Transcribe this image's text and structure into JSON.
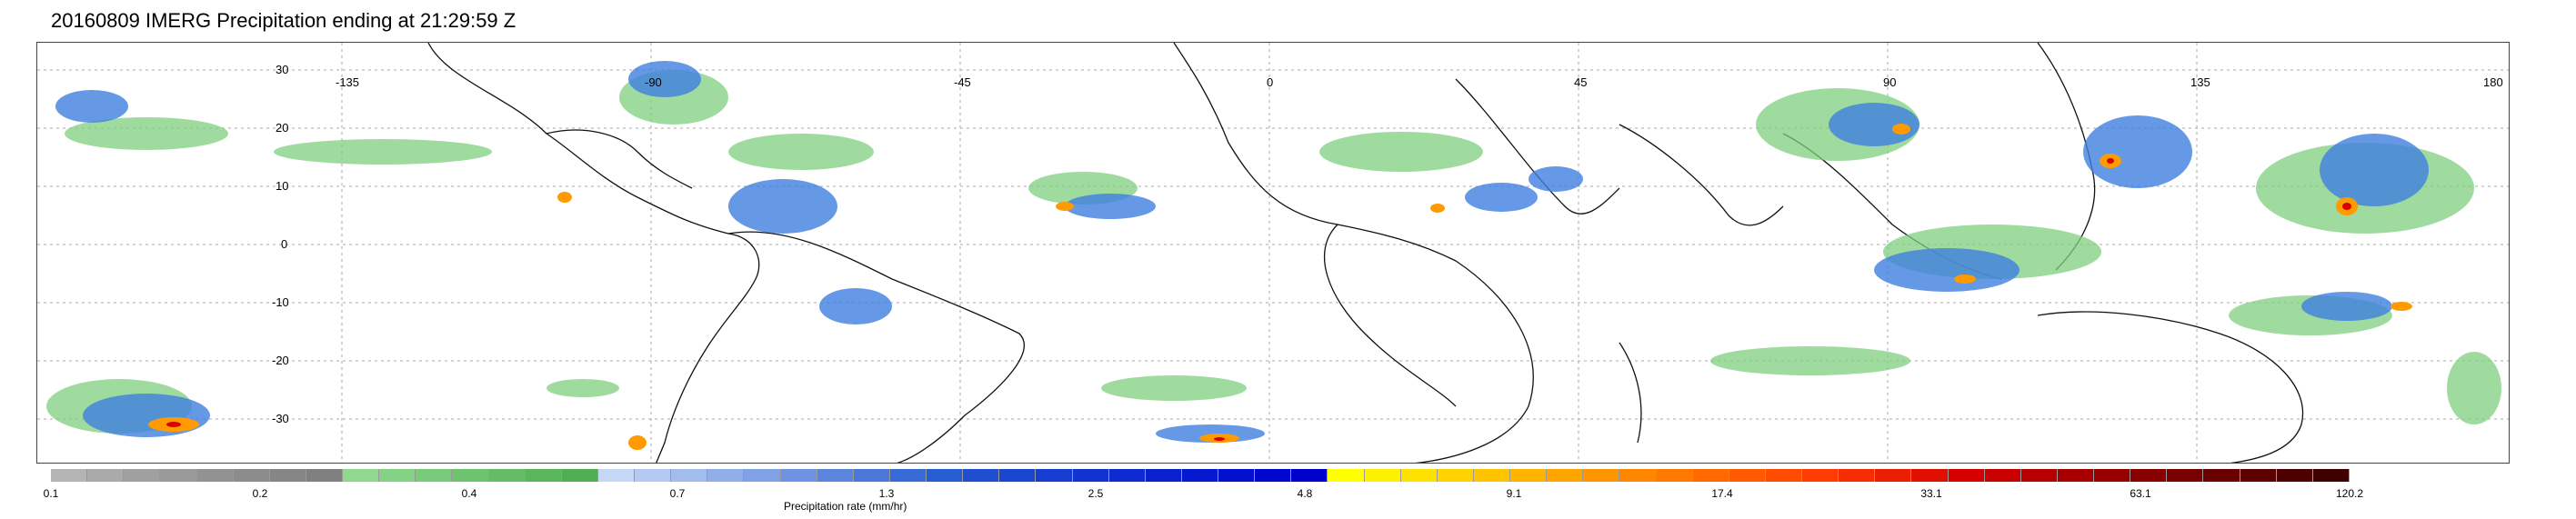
{
  "title": "20160809 IMERG Precipitation ending at 21:29:59 Z",
  "map": {
    "lat_labels": [
      "30",
      "20",
      "10",
      "0",
      "-10",
      "-20",
      "-30"
    ],
    "lon_labels": [
      "-135",
      "-90",
      "-45",
      "0",
      "45",
      "90",
      "135",
      "180"
    ]
  },
  "colorbar": {
    "label": "Precipitation rate (mm/hr)",
    "ticks": [
      "0.1",
      "0.2",
      "0.4",
      "0.7",
      "1.3",
      "2.5",
      "4.8",
      "9.1",
      "17.4",
      "33.1",
      "63.1",
      "120.2"
    ],
    "colors": [
      "#b4b4b4",
      "#aaaaaa",
      "#a0a0a0",
      "#999999",
      "#929292",
      "#8c8c8c",
      "#868686",
      "#808080",
      "#8fd98f",
      "#84d284",
      "#79cb79",
      "#6ec46e",
      "#64bd64",
      "#5ab65a",
      "#50af50",
      "#c6d6f5",
      "#b5c9f2",
      "#a3bcee",
      "#91aeea",
      "#7fa1e6",
      "#6d93e2",
      "#5b86de",
      "#4978da",
      "#376bd6",
      "#255dd2",
      "#1d4fd0",
      "#1946d0",
      "#153dd0",
      "#1134d0",
      "#0d2bd0",
      "#0922d0",
      "#0519d0",
      "#0210d0",
      "#0008d0",
      "#0000cd",
      "#ffff00",
      "#fff000",
      "#ffe100",
      "#ffd200",
      "#ffc300",
      "#ffb400",
      "#ffa500",
      "#ff9600",
      "#ff8700",
      "#ff7800",
      "#ff6900",
      "#ff5a00",
      "#ff4b00",
      "#ff3c00",
      "#f52d00",
      "#eb1e00",
      "#e00f00",
      "#d60000",
      "#c80000",
      "#b80000",
      "#a80000",
      "#980000",
      "#880000",
      "#780000",
      "#6a0000",
      "#5c0000",
      "#4e0000",
      "#400000"
    ]
  }
}
